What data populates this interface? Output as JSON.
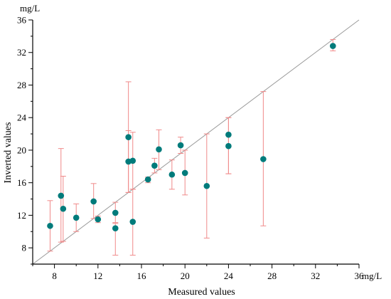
{
  "chart_data": {
    "type": "scatter",
    "title": "",
    "xlabel": "Measured values",
    "ylabel": "Inverted values",
    "x_unit": "mg/L",
    "y_unit": "mg/L",
    "xlim": [
      6,
      36
    ],
    "ylim": [
      6,
      36
    ],
    "x_ticks": [
      "8",
      "12",
      "16",
      "20",
      "24",
      "28",
      "32",
      "36"
    ],
    "y_ticks": [
      "8",
      "12",
      "16",
      "20",
      "24",
      "28",
      "32",
      "36"
    ],
    "grid": false,
    "legend": false,
    "reference_line": {
      "kind": "1:1",
      "from": [
        6,
        6
      ],
      "to": [
        36,
        36
      ]
    },
    "colors": {
      "point": "#007b7b",
      "error_bar": "#f08a8a",
      "reference_line": "#9a9a9a",
      "axis": "#000000"
    },
    "points": [
      {
        "x": 7.6,
        "y": 10.7,
        "y_low": 7.6,
        "y_high": 13.8
      },
      {
        "x": 8.6,
        "y": 14.4,
        "y_low": 8.7,
        "y_high": 20.2
      },
      {
        "x": 8.8,
        "y": 12.8,
        "y_low": 8.8,
        "y_high": 16.8
      },
      {
        "x": 10.0,
        "y": 11.7,
        "y_low": 10.0,
        "y_high": 13.4
      },
      {
        "x": 11.6,
        "y": 13.7,
        "y_low": 11.6,
        "y_high": 15.9
      },
      {
        "x": 12.0,
        "y": 11.5,
        "y_low": 11.1,
        "y_high": 11.9
      },
      {
        "x": 13.6,
        "y": 12.3,
        "y_low": 11.1,
        "y_high": 13.6
      },
      {
        "x": 13.6,
        "y": 10.4,
        "y_low": 7.1,
        "y_high": 11.0
      },
      {
        "x": 14.8,
        "y": 21.6,
        "y_low": 14.8,
        "y_high": 28.4
      },
      {
        "x": 14.8,
        "y": 18.6,
        "y_low": 14.8,
        "y_high": 22.4
      },
      {
        "x": 15.2,
        "y": 18.7,
        "y_low": 15.2,
        "y_high": 22.2
      },
      {
        "x": 15.2,
        "y": 11.2,
        "y_low": 7.1,
        "y_high": 15.2
      },
      {
        "x": 16.6,
        "y": 16.4,
        "y_low": 16.0,
        "y_high": 16.7
      },
      {
        "x": 17.2,
        "y": 18.1,
        "y_low": 17.2,
        "y_high": 19.0
      },
      {
        "x": 17.6,
        "y": 20.1,
        "y_low": 17.6,
        "y_high": 22.5
      },
      {
        "x": 18.8,
        "y": 17.0,
        "y_low": 15.2,
        "y_high": 18.8
      },
      {
        "x": 19.6,
        "y": 20.6,
        "y_low": 19.6,
        "y_high": 21.6
      },
      {
        "x": 20.0,
        "y": 17.2,
        "y_low": 14.5,
        "y_high": 20.0
      },
      {
        "x": 22.0,
        "y": 15.6,
        "y_low": 9.2,
        "y_high": 22.0
      },
      {
        "x": 24.0,
        "y": 21.9,
        "y_low": 17.1,
        "y_high": 24.0
      },
      {
        "x": 24.0,
        "y": 20.5,
        "y_low": 17.1,
        "y_high": 24.0
      },
      {
        "x": 27.2,
        "y": 18.9,
        "y_low": 10.7,
        "y_high": 27.2
      },
      {
        "x": 33.6,
        "y": 32.8,
        "y_low": 32.2,
        "y_high": 33.6
      }
    ]
  }
}
